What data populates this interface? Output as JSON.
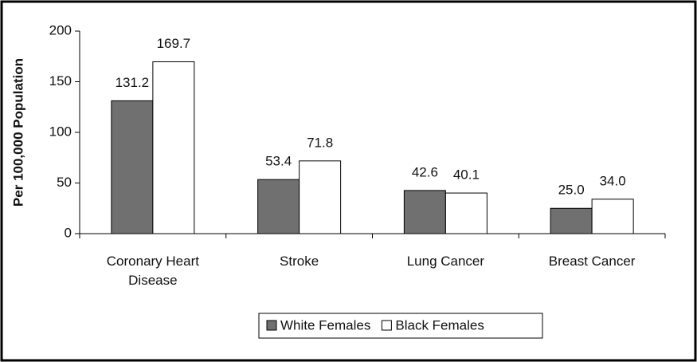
{
  "chart_data": {
    "type": "bar",
    "ylabel": "Per 100,000 Population",
    "categories": [
      "Coronary Heart Disease",
      "Stroke",
      "Lung Cancer",
      "Breast Cancer"
    ],
    "series": [
      {
        "name": "White Females",
        "color": "#707070",
        "values": [
          131.2,
          53.4,
          42.6,
          25.0
        ],
        "value_labels": [
          "131.2",
          "53.4",
          "42.6",
          "25.0"
        ]
      },
      {
        "name": "Black Females",
        "color": "#ffffff",
        "values": [
          169.7,
          71.8,
          40.1,
          34.0
        ],
        "value_labels": [
          "169.7",
          "71.8",
          "40.1",
          "34.0"
        ]
      }
    ],
    "ylim": [
      0,
      200
    ],
    "yticks": [
      0,
      50,
      100,
      150,
      200
    ],
    "legend": "bottom"
  }
}
